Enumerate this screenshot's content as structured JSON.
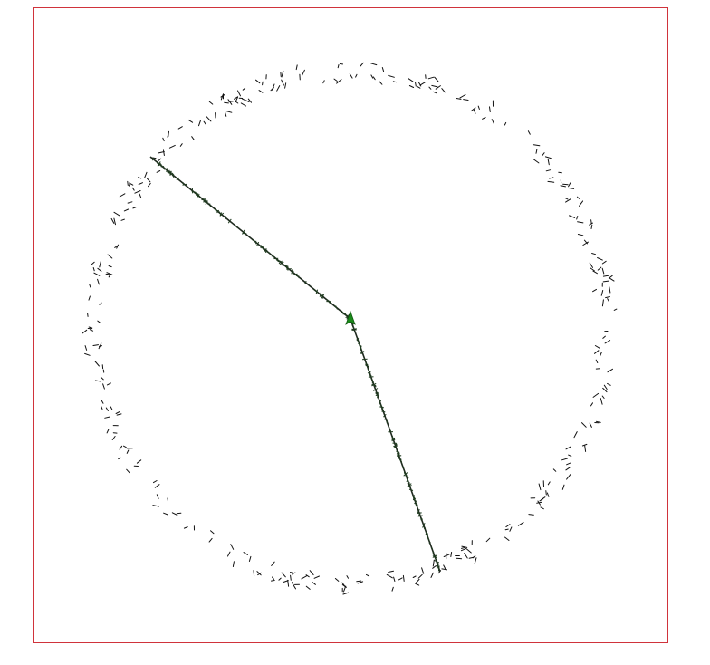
{
  "colors": {
    "frame": "#d0333b",
    "background": "#ffffff",
    "dash": "#111111",
    "trail": "#1f2a1f",
    "turtle": "#1a8a1a"
  },
  "icons": {
    "turtle": "turtle-arrow-icon"
  },
  "scene": {
    "kind": "turtle-graphics canvas",
    "ring_of_dashes": true,
    "trails": 2
  }
}
